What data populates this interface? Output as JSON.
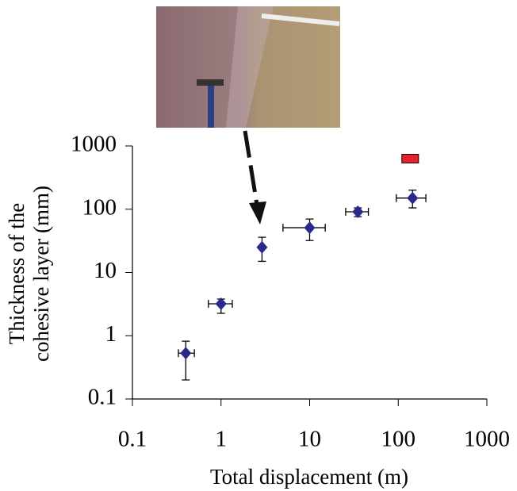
{
  "chart_data": {
    "type": "scatter",
    "x_label": "Total displacement (m)",
    "y_label": [
      "Thickness of the",
      "cohesive layer (mm)"
    ],
    "log_x": true,
    "log_y": true,
    "xlim": [
      0.1,
      1000
    ],
    "xticks": [
      0.1,
      1,
      10,
      100,
      1000
    ],
    "ylim": [
      0.1,
      1000
    ],
    "yticks": [
      0.1,
      1,
      10,
      100,
      1000
    ],
    "series": [
      {
        "color": "#2a2a8c",
        "marker": "diamond",
        "x": [
          0.4,
          1,
          2.9,
          10,
          35,
          145
        ],
        "values": [
          0.53,
          3.2,
          25,
          51,
          91,
          150
        ],
        "y_low": [
          0.2,
          2.26,
          15,
          32,
          76,
          105
        ],
        "y_high": [
          0.82,
          3.8,
          36,
          70,
          105,
          200
        ],
        "x_low": [
          0.33,
          0.72,
          null,
          5,
          25.5,
          95
        ],
        "x_high": [
          0.5,
          1.34,
          null,
          15,
          46,
          205
        ]
      },
      {
        "color": "#e8202a",
        "marker": "rect",
        "x": [
          135
        ],
        "values": [
          630
        ]
      }
    ]
  }
}
